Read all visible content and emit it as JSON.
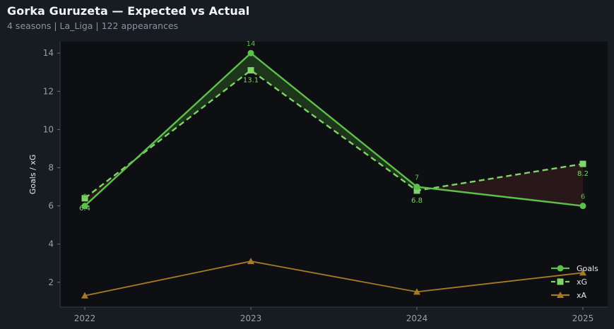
{
  "header": {
    "title": "Gorka Guruzeta — Expected vs Actual",
    "subtitle": "4 seasons | La_Liga | 122 appearances"
  },
  "colors": {
    "background": "#171b22",
    "plot_background": "#0d0f13",
    "goals": "#5cc04a",
    "xg": "#7fd46a",
    "xa": "#a87a24",
    "overperform_fill": "#1f3a1c",
    "underperform_fill": "#2c1a1c"
  },
  "chart_data": {
    "type": "line",
    "title": "Gorka Guruzeta — Expected vs Actual",
    "subtitle": "4 seasons | La_Liga | 122 appearances",
    "xlabel": "",
    "ylabel": "Goals / xG",
    "categories": [
      "2022",
      "2023",
      "2024",
      "2025"
    ],
    "ylim": [
      0.7,
      14.6
    ],
    "yticks": [
      2,
      4,
      6,
      8,
      10,
      12,
      14
    ],
    "grid": false,
    "legend_position": "bottom-right",
    "series": [
      {
        "name": "Goals",
        "values": [
          6,
          14,
          7,
          6
        ],
        "style": "solid",
        "marker": "circle",
        "labels": [
          "6",
          "14",
          "7",
          "6"
        ]
      },
      {
        "name": "xG",
        "values": [
          6.4,
          13.1,
          6.8,
          8.2
        ],
        "style": "dashed",
        "marker": "square",
        "labels": [
          "6.4",
          "13.1",
          "6.8",
          "8.2"
        ]
      },
      {
        "name": "xA",
        "values": [
          1.3,
          3.1,
          1.5,
          2.5
        ],
        "style": "solid",
        "marker": "triangle"
      }
    ]
  }
}
